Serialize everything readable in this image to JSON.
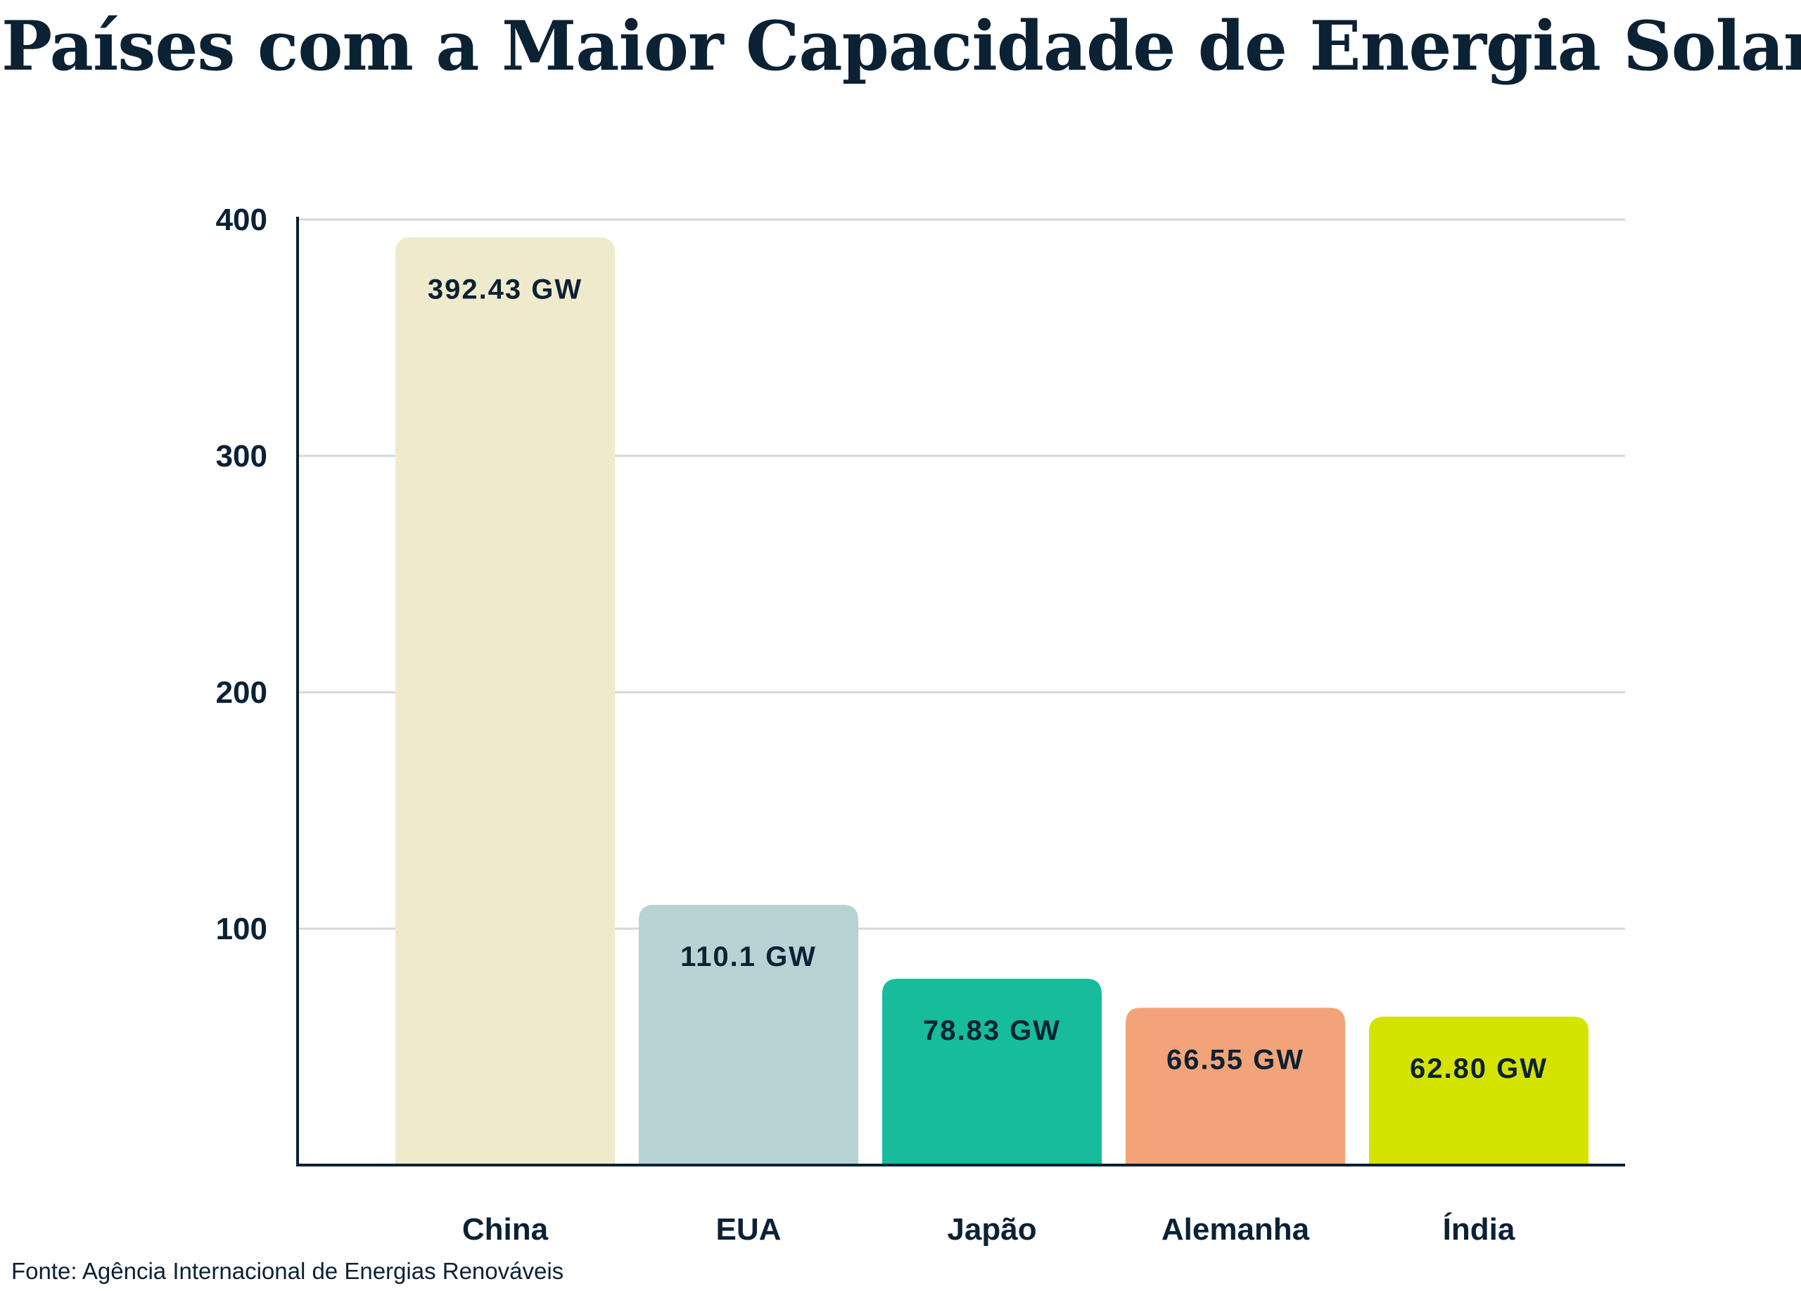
{
  "title": "Países com a Maior Capacidade de Energia Solar",
  "source": "Fonte: Agência Internacional de Energias Renováveis",
  "chart_data": {
    "type": "bar",
    "categories": [
      "China",
      "EUA",
      "Japão",
      "Alemanha",
      "Índia"
    ],
    "values": [
      392.43,
      110.1,
      78.83,
      66.55,
      62.8
    ],
    "data_labels": [
      "392.43 GW",
      "110.1 GW",
      "78.83 GW",
      "66.55 GW",
      "62.80 GW"
    ],
    "colors": [
      "#f0eacd",
      "#b7d2d3",
      "#16bc9b",
      "#f3a379",
      "#d5e300"
    ],
    "yticks": [
      100,
      200,
      300,
      400
    ],
    "ytick_labels": [
      "100",
      "200",
      "300",
      "400"
    ],
    "ylim": [
      0,
      400
    ],
    "grid": true,
    "legend": "none",
    "axis_color": "#0b2134",
    "grid_color": "#d5d7db"
  }
}
